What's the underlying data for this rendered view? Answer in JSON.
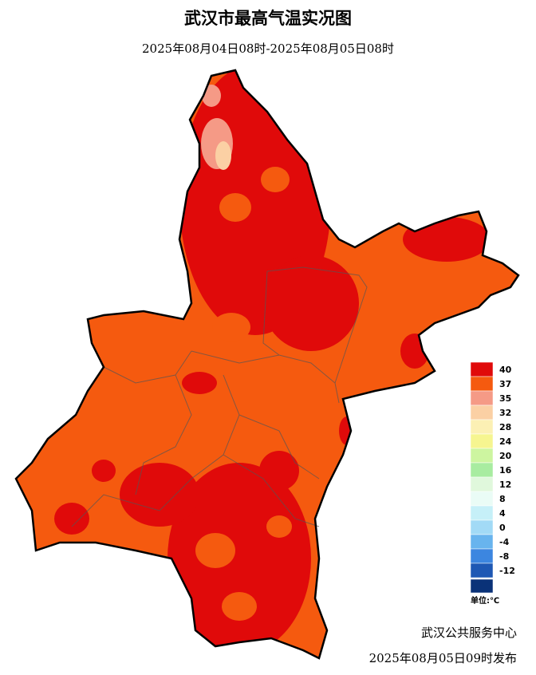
{
  "header": {
    "title": "武汉市最高气温实况图",
    "subtitle": "2025年08月04日08时-2025年08月05日08时"
  },
  "legend": {
    "items": [
      {
        "label": "40",
        "color": "#e00a0a"
      },
      {
        "label": "37",
        "color": "#f55a0f"
      },
      {
        "label": "35",
        "color": "#f59a86"
      },
      {
        "label": "32",
        "color": "#fbd0a4"
      },
      {
        "label": "28",
        "color": "#fcf0b4"
      },
      {
        "label": "24",
        "color": "#f6f590"
      },
      {
        "label": "20",
        "color": "#cdf5a0"
      },
      {
        "label": "16",
        "color": "#a8eca0"
      },
      {
        "label": "12",
        "color": "#e0f8dc"
      },
      {
        "label": "8",
        "color": "#eafcf6"
      },
      {
        "label": "4",
        "color": "#c6f0f8"
      },
      {
        "label": "0",
        "color": "#a2daf6"
      },
      {
        "label": "-4",
        "color": "#68b4ee"
      },
      {
        "label": "-8",
        "color": "#3c86e0"
      },
      {
        "label": "-12",
        "color": "#1e58b4"
      }
    ],
    "unit": "单位:℃"
  },
  "footer": {
    "publisher": "武汉公共服务中心",
    "release": "2025年08月05日09时发布"
  }
}
